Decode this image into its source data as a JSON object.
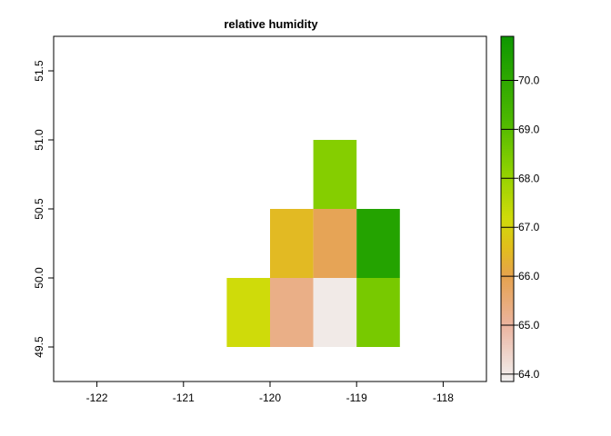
{
  "chart_data": {
    "type": "heatmap",
    "title": "relative humidity",
    "xlabel": "",
    "ylabel": "",
    "xlim": [
      -122.5,
      -117.5
    ],
    "ylim": [
      49.25,
      51.75
    ],
    "x_ticks": [
      -122,
      -121,
      -120,
      -119,
      -118
    ],
    "x_tick_labels": [
      "-122",
      "-121",
      "-120",
      "-119",
      "-118"
    ],
    "y_ticks": [
      49.5,
      50.0,
      50.5,
      51.0,
      51.5
    ],
    "y_tick_labels": [
      "49.5",
      "50.0",
      "50.5",
      "51.0",
      "51.5"
    ],
    "cell_size": 0.5,
    "cells": [
      {
        "x": -120.25,
        "y": 49.75,
        "value": 67.2
      },
      {
        "x": -119.75,
        "y": 49.75,
        "value": 65.3
      },
      {
        "x": -119.25,
        "y": 49.75,
        "value": 64.0
      },
      {
        "x": -118.75,
        "y": 49.75,
        "value": 68.5
      },
      {
        "x": -119.75,
        "y": 50.25,
        "value": 66.5
      },
      {
        "x": -119.25,
        "y": 50.25,
        "value": 65.9
      },
      {
        "x": -118.75,
        "y": 50.25,
        "value": 70.3
      },
      {
        "x": -119.25,
        "y": 50.75,
        "value": 68.3
      }
    ],
    "legend": {
      "min": 63.85,
      "max": 70.9,
      "ticks": [
        64.0,
        65.0,
        66.0,
        67.0,
        68.0,
        69.0,
        70.0
      ],
      "tick_labels": [
        "64.0",
        "65.0",
        "66.0",
        "67.0",
        "68.0",
        "69.0",
        "70.0"
      ],
      "position": "right"
    },
    "color_stops": [
      {
        "value": 63.85,
        "color": "#f2f2f2"
      },
      {
        "value": 65.0,
        "color": "#ebb4a0"
      },
      {
        "value": 66.0,
        "color": "#e6a24e"
      },
      {
        "value": 66.6,
        "color": "#e1bf1b"
      },
      {
        "value": 67.2,
        "color": "#cfdb0a"
      },
      {
        "value": 68.2,
        "color": "#8bd000"
      },
      {
        "value": 69.2,
        "color": "#4cb800"
      },
      {
        "value": 70.9,
        "color": "#0e9700"
      }
    ],
    "grid": false
  }
}
